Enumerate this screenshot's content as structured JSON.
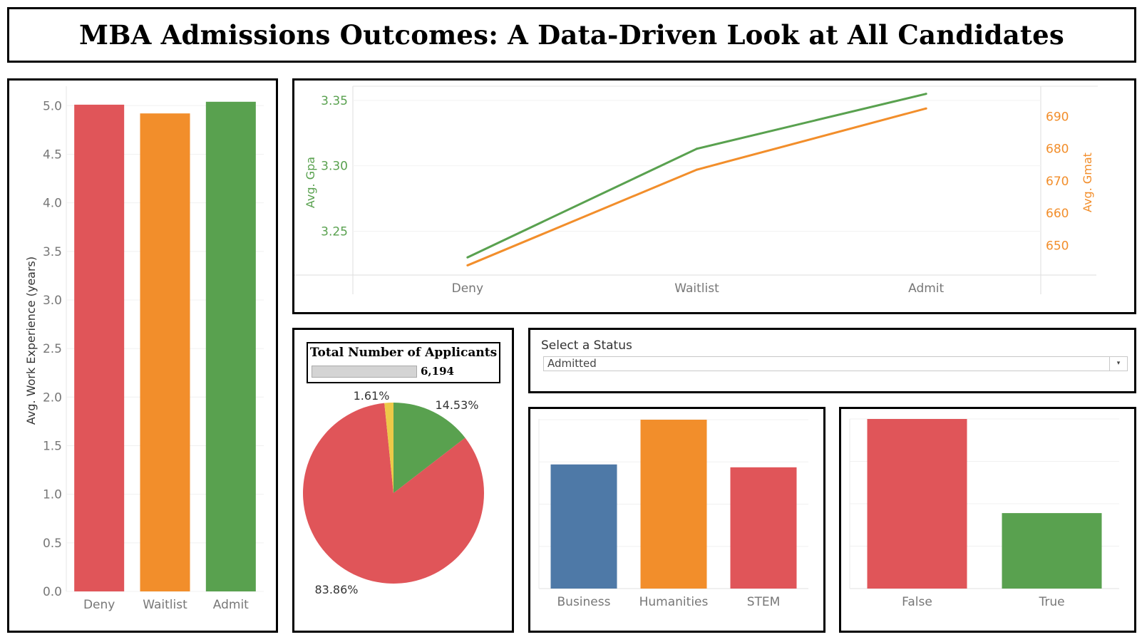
{
  "title": "MBA Admissions Outcomes: A Data-Driven Look at All Candidates",
  "colors": {
    "deny": "#e05559",
    "waitlist": "#f28e2b",
    "admit": "#59a14f",
    "business": "#4e79a7",
    "pie_yellow": "#edc948",
    "gpa_line": "#59a14f",
    "gmat_line": "#f28e2b"
  },
  "chart_data": [
    {
      "type": "bar",
      "categories": [
        "Deny",
        "Waitlist",
        "Admit"
      ],
      "values": [
        5.01,
        4.92,
        5.04
      ],
      "ylabel": "Avg. Work Experience (years)",
      "ylim": [
        0,
        5.2
      ],
      "yticks": [
        "0.0",
        "0.5",
        "1.0",
        "1.5",
        "2.0",
        "2.5",
        "3.0",
        "3.5",
        "4.0",
        "4.5",
        "5.0"
      ],
      "colors": [
        "#e05559",
        "#f28e2b",
        "#59a14f"
      ]
    },
    {
      "type": "line",
      "categories": [
        "Deny",
        "Waitlist",
        "Admit"
      ],
      "series": [
        {
          "name": "Avg. Gpa",
          "axis": "left",
          "values": [
            3.23,
            3.313,
            3.355
          ],
          "color": "#59a14f"
        },
        {
          "name": "Avg. Gmat",
          "axis": "right",
          "values": [
            643.8,
            673.5,
            692.5
          ],
          "color": "#f28e2b"
        }
      ],
      "ylabel_left": "Avg. Gpa",
      "ylabel_right": "Avg. Gmat",
      "yticks_left": [
        "3.25",
        "3.30",
        "3.35"
      ],
      "yticks_right": [
        "650",
        "660",
        "670",
        "680",
        "690"
      ],
      "ylim_left": [
        3.2165,
        3.3608
      ],
      "ylim_right": [
        640.8,
        699.4
      ]
    },
    {
      "type": "pie",
      "title": "Total Number of Applicants",
      "total": "6,194",
      "slices": [
        {
          "value": 14.53,
          "label": "14.53%",
          "color": "#59a14f"
        },
        {
          "value": 83.86,
          "label": "83.86%",
          "color": "#e05559"
        },
        {
          "value": 1.61,
          "label": "1.61%",
          "color": "#edc948"
        }
      ]
    },
    {
      "type": "bar",
      "categories": [
        "Business",
        "Humanities",
        "STEM"
      ],
      "values": [
        0.735,
        1.0,
        0.718
      ],
      "colors": [
        "#4e79a7",
        "#f28e2b",
        "#e05559"
      ]
    },
    {
      "type": "bar",
      "categories": [
        "False",
        "True"
      ],
      "values": [
        1.0,
        0.445
      ],
      "colors": [
        "#e05559",
        "#59a14f"
      ]
    }
  ],
  "filter": {
    "label": "Select a Status",
    "selected": "Admitted",
    "arrow": "▾"
  }
}
